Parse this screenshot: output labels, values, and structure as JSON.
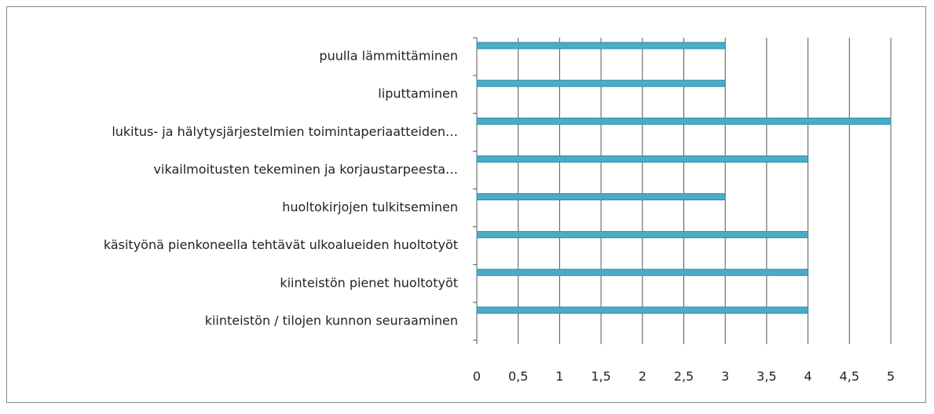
{
  "chart_data": {
    "type": "hbar",
    "categories": [
      "puulla lämmittäminen",
      "liputtaminen",
      "lukitus- ja hälytysjärjestelmien toimintaperiaatteiden…",
      "vikailmoitusten tekeminen ja korjaustarpeesta…",
      "huoltokirjojen tulkitseminen",
      "käsityönä pienkoneella tehtävät ulkoalueiden huoltotyöt",
      "kiinteistön pienet huoltotyöt",
      "kiinteistön / tilojen kunnon seuraaminen"
    ],
    "values": [
      3,
      3,
      5,
      4,
      3,
      4,
      4,
      4
    ],
    "color": "#4bacc6",
    "xlim": [
      0,
      5
    ],
    "xticks": [
      0,
      {
        "value": 0.5,
        "label": "0,5"
      },
      1,
      {
        "value": 1.5,
        "label": "1,5"
      },
      2,
      {
        "value": 2.5,
        "label": "2,5"
      },
      3,
      {
        "value": 3.5,
        "label": "3,5"
      },
      4,
      {
        "value": 4.5,
        "label": "4,5"
      },
      5
    ],
    "grid": true
  }
}
